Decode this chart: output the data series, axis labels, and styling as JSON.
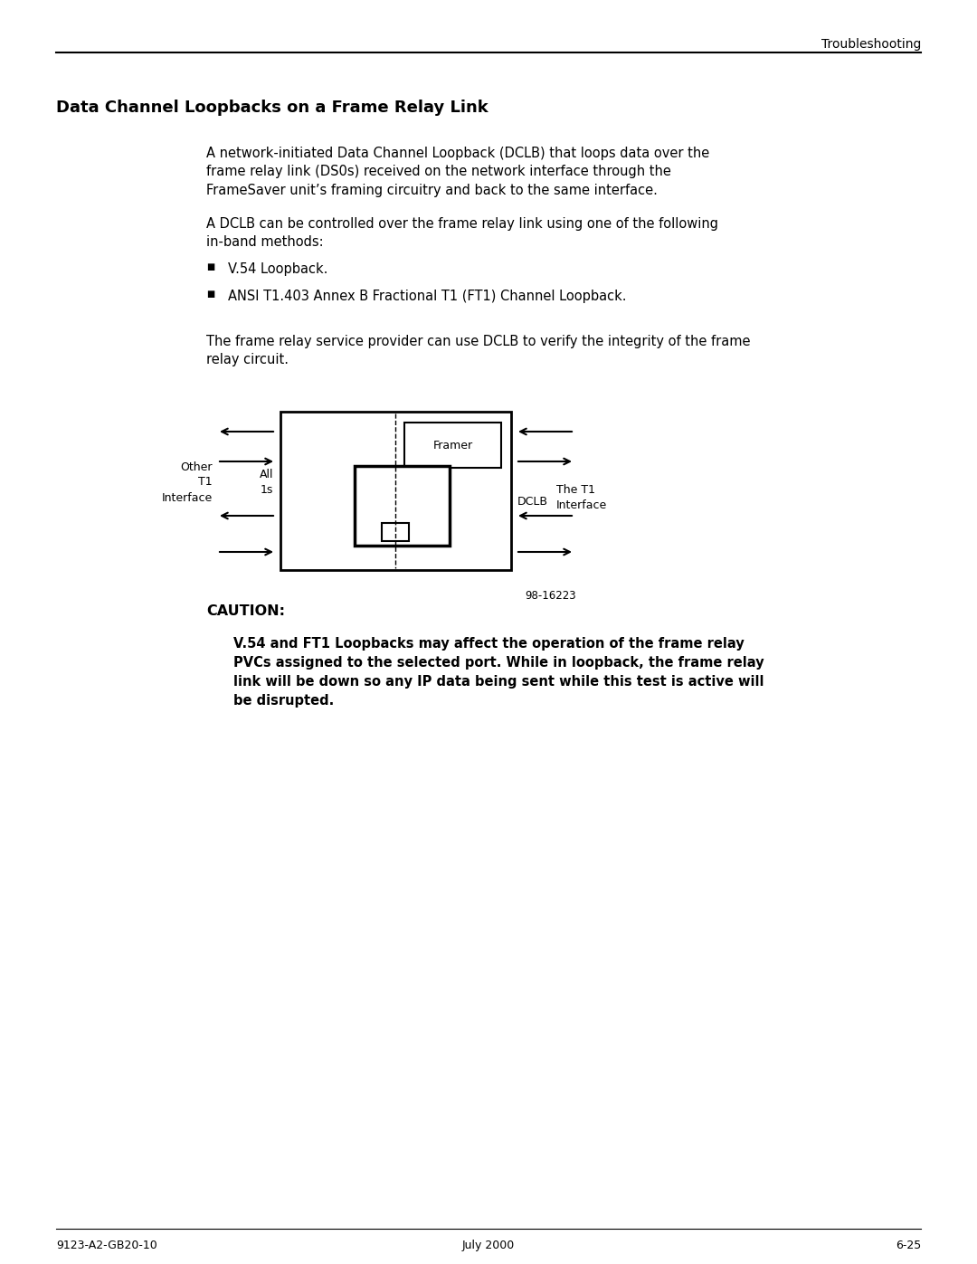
{
  "page_title": "Troubleshooting",
  "section_title": "Data Channel Loopbacks on a Frame Relay Link",
  "body_text_1": "A network-initiated Data Channel Loopback (DCLB) that loops data over the\nframe relay link (DS0s) received on the network interface through the\nFrameSaver unit’s framing circuitry and back to the same interface.",
  "body_text_2": "A DCLB can be controlled over the frame relay link using one of the following\nin-band methods:",
  "bullet_1": "V.54 Loopback.",
  "bullet_2": "ANSI T1.403 Annex B Fractional T1 (FT1) Channel Loopback.",
  "body_text_3": "The frame relay service provider can use DCLB to verify the integrity of the frame\nrelay circuit.",
  "caution_label": "CAUTION:",
  "caution_text": "V.54 and FT1 Loopbacks may affect the operation of the frame relay\nPVCs assigned to the selected port. While in loopback, the frame relay\nlink will be down so any IP data being sent while this test is active will\nbe disrupted.",
  "diagram_label_framer": "Framer",
  "diagram_label_dclb": "DCLB",
  "diagram_label_other": "Other\nT1\nInterface",
  "diagram_label_all1s": "All\n1s",
  "diagram_label_t1": "The T1\nInterface",
  "diagram_figure_num": "98-16223",
  "footer_left": "9123-A2-GB20-10",
  "footer_center": "July 2000",
  "footer_right": "6-25",
  "bg_color": "#ffffff",
  "text_color": "#000000"
}
